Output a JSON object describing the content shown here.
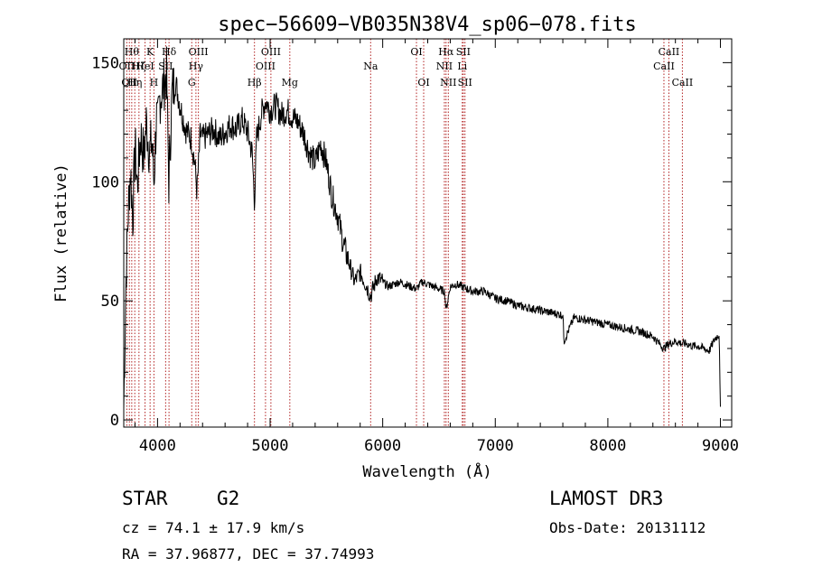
{
  "chart_data": {
    "type": "line",
    "title": "spec−56609−VB035N38V4_sp06−078.fits",
    "xlabel": "Wavelength (Å)",
    "ylabel": "Flux (relative)",
    "xlim": [
      3700,
      9100
    ],
    "ylim": [
      -3,
      160
    ],
    "xticks": [
      4000,
      5000,
      6000,
      7000,
      8000,
      9000
    ],
    "yticks": [
      0,
      50,
      100,
      150
    ],
    "grid": false,
    "series": [
      {
        "name": "flux",
        "x": [
          3700,
          3720,
          3740,
          3760,
          3780,
          3800,
          3820,
          3850,
          3880,
          3900,
          3930,
          3950,
          3968,
          3990,
          4000,
          4020,
          4050,
          4080,
          4100,
          4130,
          4160,
          4200,
          4250,
          4300,
          4330,
          4350,
          4380,
          4400,
          4450,
          4500,
          4550,
          4600,
          4650,
          4700,
          4750,
          4800,
          4840,
          4861,
          4880,
          4920,
          4960,
          5000,
          5050,
          5100,
          5150,
          5200,
          5250,
          5300,
          5350,
          5400,
          5450,
          5500,
          5550,
          5600,
          5650,
          5700,
          5750,
          5800,
          5850,
          5893,
          5950,
          6000,
          6050,
          6100,
          6150,
          6200,
          6250,
          6300,
          6350,
          6400,
          6450,
          6500,
          6550,
          6563,
          6600,
          6650,
          6700,
          6750,
          6800,
          6900,
          7000,
          7100,
          7200,
          7300,
          7400,
          7500,
          7600,
          7610,
          7700,
          7800,
          7900,
          8000,
          8100,
          8200,
          8300,
          8400,
          8498,
          8542,
          8600,
          8662,
          8700,
          8750,
          8800,
          8850,
          8900,
          8950,
          8990,
          9000
        ],
        "values": [
          5,
          60,
          88,
          105,
          85,
          115,
          98,
          120,
          110,
          125,
          112,
          118,
          100,
          128,
          122,
          135,
          140,
          145,
          100,
          138,
          142,
          132,
          122,
          118,
          108,
          96,
          120,
          118,
          120,
          122,
          118,
          121,
          124,
          122,
          126,
          121,
          112,
          92,
          118,
          128,
          134,
          130,
          132,
          128,
          130,
          127,
          125,
          120,
          112,
          108,
          116,
          108,
          94,
          86,
          74,
          66,
          58,
          62,
          57,
          52,
          60,
          58,
          56,
          57,
          58,
          57,
          56,
          55,
          58,
          57,
          56,
          55,
          54,
          46,
          56,
          57,
          56,
          55,
          54,
          54,
          51,
          50,
          48,
          47,
          46,
          45,
          44,
          33,
          43,
          42,
          41,
          40,
          39,
          38,
          37,
          35,
          30,
          32,
          33,
          32,
          32,
          31,
          31,
          30,
          29,
          34,
          36,
          4
        ]
      }
    ],
    "lines": [
      {
        "x": 3727,
        "label": "OII",
        "row": 2
      },
      {
        "x": 3750,
        "label": "OII",
        "row": 3
      },
      {
        "x": 3771,
        "label": "Hθ",
        "row": 1
      },
      {
        "x": 3798,
        "label": "Hη",
        "row": 3
      },
      {
        "x": 3835,
        "label": "Hζ",
        "row": 2
      },
      {
        "x": 3889,
        "label": "HeI",
        "row": 2
      },
      {
        "x": 3934,
        "label": "K",
        "row": 1
      },
      {
        "x": 3968,
        "label": "H",
        "row": 3
      },
      {
        "x": 4072,
        "label": "SII",
        "row": 2
      },
      {
        "x": 4102,
        "label": "Hδ",
        "row": 1
      },
      {
        "x": 4304,
        "label": "G",
        "row": 3
      },
      {
        "x": 4341,
        "label": "Hγ",
        "row": 2
      },
      {
        "x": 4363,
        "label": "OIII",
        "row": 1
      },
      {
        "x": 4861,
        "label": "Hβ",
        "row": 3
      },
      {
        "x": 4959,
        "label": "OIII",
        "row": 2
      },
      {
        "x": 5007,
        "label": "OIII",
        "row": 1
      },
      {
        "x": 5175,
        "label": "Mg",
        "row": 3
      },
      {
        "x": 5893,
        "label": "Na",
        "row": 2
      },
      {
        "x": 6300,
        "label": "OI",
        "row": 1
      },
      {
        "x": 6364,
        "label": "OI",
        "row": 3
      },
      {
        "x": 6548,
        "label": "NII",
        "row": 2
      },
      {
        "x": 6563,
        "label": "Hα",
        "row": 1
      },
      {
        "x": 6583,
        "label": "NII",
        "row": 3
      },
      {
        "x": 6707,
        "label": "Li",
        "row": 2
      },
      {
        "x": 6716,
        "label": "SII",
        "row": 1
      },
      {
        "x": 6731,
        "label": "SII",
        "row": 3
      },
      {
        "x": 8498,
        "label": "CaII",
        "row": 2
      },
      {
        "x": 8542,
        "label": "CaII",
        "row": 1
      },
      {
        "x": 8662,
        "label": "CaII",
        "row": 3
      }
    ]
  },
  "info": {
    "object_class": "STAR",
    "subclass": "G2",
    "survey": "LAMOST DR3",
    "redshift": "cz =  74.1 ± 17.9 km/s",
    "obs_date": "Obs-Date: 20131112",
    "coords": "RA =  37.96877, DEC =  37.74993"
  },
  "colors": {
    "line_marker": "#b22222",
    "spectrum": "#000000",
    "axis": "#000000"
  }
}
